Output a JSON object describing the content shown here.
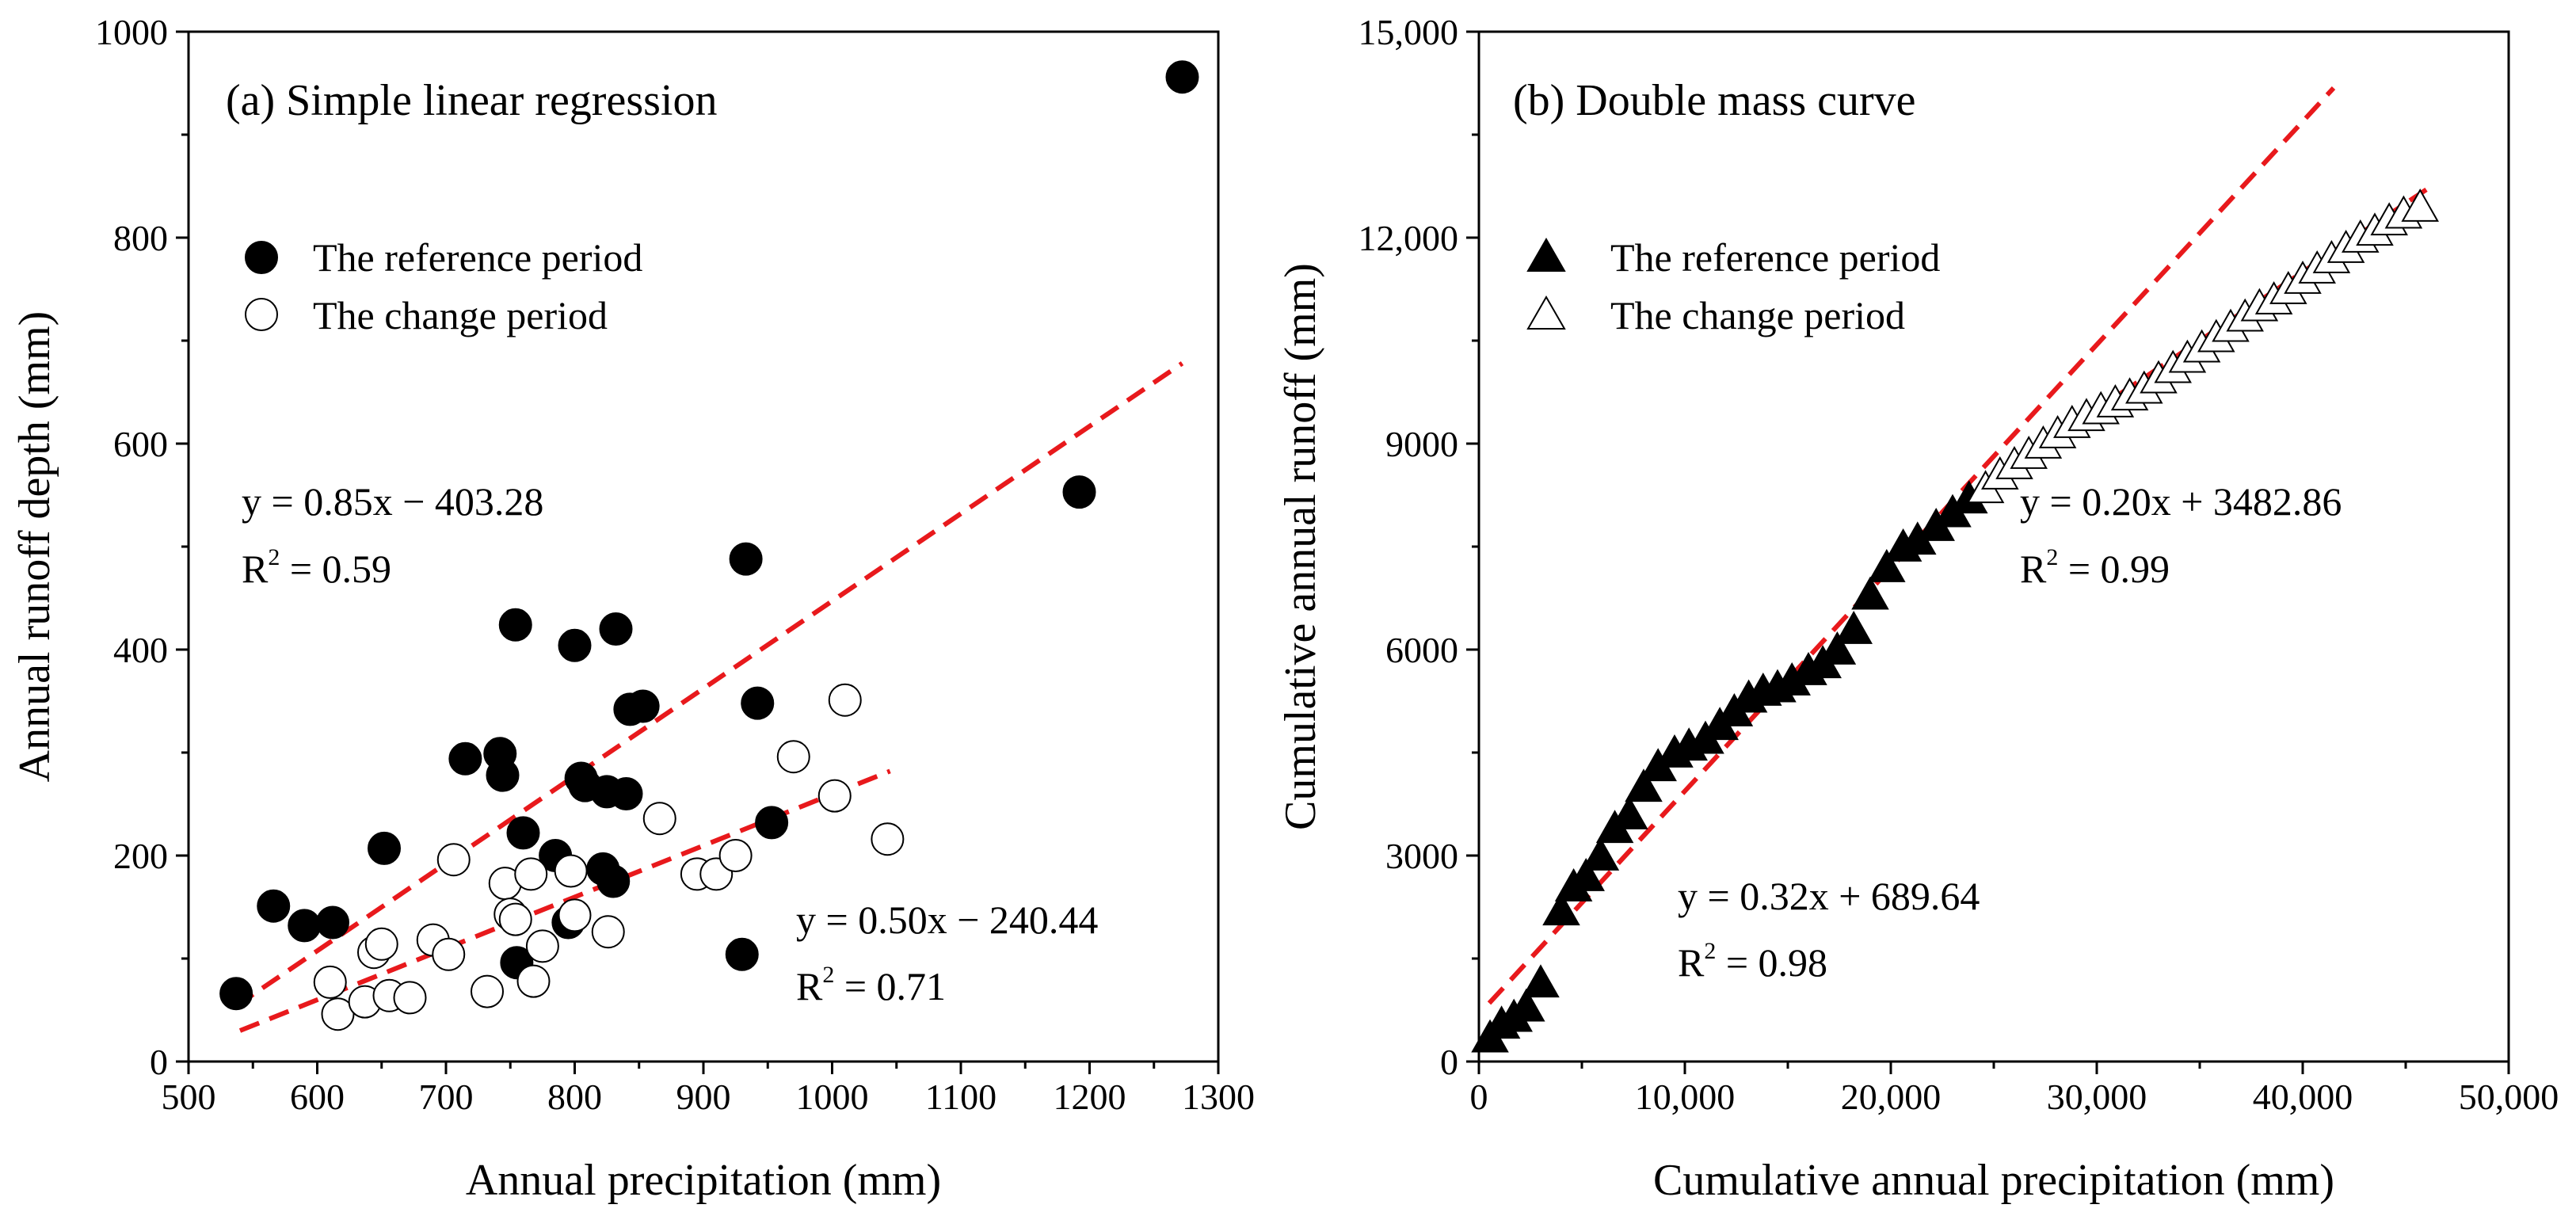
{
  "colors": {
    "fit_line": "#e8191c",
    "marker_filled": "#000000",
    "marker_open_fill": "#ffffff",
    "marker_stroke": "#000000"
  },
  "chart_data": [
    {
      "type": "scatter",
      "title": "(a) Simple linear regression",
      "xlabel": "Annual precipitation (mm)",
      "ylabel": "Annual runoff depth (mm)",
      "xlim": [
        500,
        1300
      ],
      "ylim": [
        0,
        1000
      ],
      "xticks": [
        500,
        600,
        700,
        800,
        900,
        1000,
        1100,
        1200,
        1300
      ],
      "yticks": [
        0,
        200,
        400,
        600,
        800,
        1000
      ],
      "xtick_labels": [
        "500",
        "600",
        "700",
        "800",
        "900",
        "1000",
        "1100",
        "1200",
        "1300"
      ],
      "ytick_labels": [
        "0",
        "200",
        "400",
        "600",
        "800",
        "1000"
      ],
      "legend": [
        "The reference period",
        "The change period"
      ],
      "legend_position": "top-left",
      "series": [
        {
          "name": "The reference period",
          "marker": "filled-circle",
          "x": [
            537,
            566,
            590,
            612,
            652,
            715,
            742,
            744,
            754,
            755,
            760,
            785,
            795,
            800,
            805,
            808,
            822,
            825,
            830,
            832,
            840,
            843,
            853,
            930,
            933,
            942,
            953,
            1192,
            1272
          ],
          "y": [
            66,
            151,
            132,
            135,
            207,
            294,
            299,
            278,
            424,
            96,
            222,
            200,
            135,
            404,
            275,
            268,
            187,
            262,
            175,
            420,
            260,
            342,
            345,
            104,
            488,
            348,
            232,
            553,
            956
          ]
        },
        {
          "name": "The change period",
          "marker": "open-circle",
          "x": [
            610,
            616,
            637,
            644,
            650,
            656,
            672,
            690,
            702,
            706,
            732,
            746,
            750,
            754,
            766,
            768,
            775,
            797,
            800,
            826,
            866,
            895,
            910,
            925,
            970,
            1002,
            1010,
            1043
          ],
          "y": [
            77,
            46,
            58,
            106,
            114,
            64,
            62,
            118,
            104,
            196,
            68,
            173,
            143,
            138,
            182,
            78,
            112,
            185,
            142,
            126,
            236,
            182,
            182,
            200,
            296,
            258,
            351,
            216
          ]
        }
      ],
      "fit_lines": [
        {
          "label": "reference fit",
          "x": [
            537,
            1272
          ],
          "y": [
            54,
            678
          ]
        },
        {
          "label": "change fit",
          "x": [
            540,
            1045
          ],
          "y": [
            30,
            282
          ]
        }
      ],
      "annotations": [
        {
          "eq": "y = 0.85x − 403.28",
          "r2_base": "R",
          "r2_sup": "2",
          "r2_rest": " = 0.59"
        },
        {
          "eq": "y = 0.50x − 240.44",
          "r2_base": "R",
          "r2_sup": "2",
          "r2_rest": " = 0.71"
        }
      ]
    },
    {
      "type": "scatter",
      "title": "(b) Double mass curve",
      "xlabel": "Cumulative annual precipitation (mm)",
      "ylabel": "Cumulative annual runoff (mm)",
      "xlim": [
        0,
        50000
      ],
      "ylim": [
        0,
        15000
      ],
      "xticks": [
        0,
        10000,
        20000,
        30000,
        40000,
        50000
      ],
      "yticks": [
        0,
        3000,
        6000,
        9000,
        12000,
        15000
      ],
      "xtick_labels": [
        "0",
        "10,000",
        "20,000",
        "30,000",
        "40,000",
        "50,000"
      ],
      "ytick_labels": [
        "0",
        "3000",
        "6000",
        "9000",
        "12,000",
        "15,000"
      ],
      "legend": [
        "The reference period",
        "The change period"
      ],
      "legend_position": "top-left",
      "series": [
        {
          "name": "The reference period",
          "marker": "filled-triangle",
          "x": [
            540,
            1100,
            1700,
            2300,
            3000,
            4000,
            4600,
            5200,
            5900,
            6600,
            7300,
            8000,
            8700,
            9500,
            10200,
            11000,
            11700,
            12400,
            13100,
            13800,
            14500,
            15200,
            16000,
            16700,
            17400,
            18200,
            19000,
            19800,
            20600,
            21300,
            22200,
            23000,
            23800
          ],
          "y": [
            350,
            550,
            650,
            800,
            1150,
            2200,
            2550,
            2700,
            3000,
            3400,
            3600,
            4000,
            4300,
            4500,
            4600,
            4700,
            4900,
            5100,
            5300,
            5400,
            5450,
            5550,
            5700,
            5800,
            6000,
            6300,
            6800,
            7200,
            7500,
            7600,
            7800,
            8000,
            8200
          ]
        },
        {
          "name": "The change period",
          "marker": "open-triangle",
          "x": [
            24600,
            25300,
            26000,
            26700,
            27400,
            28100,
            28800,
            29500,
            30200,
            30900,
            31600,
            32300,
            33000,
            33700,
            34400,
            35100,
            35800,
            36500,
            37200,
            37900,
            38600,
            39300,
            40000,
            40700,
            41400,
            42100,
            42800,
            43500,
            44200,
            44900,
            45700
          ],
          "y": [
            8350,
            8550,
            8700,
            8850,
            9000,
            9150,
            9300,
            9400,
            9500,
            9600,
            9700,
            9800,
            9950,
            10100,
            10250,
            10400,
            10550,
            10700,
            10850,
            11000,
            11100,
            11250,
            11400,
            11550,
            11700,
            11850,
            12000,
            12100,
            12250,
            12350,
            12450
          ]
        }
      ],
      "fit_lines": [
        {
          "label": "reference fit",
          "x": [
            500,
            41500
          ],
          "y": [
            850,
            14180
          ]
        },
        {
          "label": "change fit",
          "x": [
            26000,
            46000
          ],
          "y": [
            8700,
            12700
          ]
        }
      ],
      "annotations": [
        {
          "eq": "y = 0.20x + 3482.86",
          "r2_base": "R",
          "r2_sup": "2",
          "r2_rest": " = 0.99"
        },
        {
          "eq": "y = 0.32x + 689.64",
          "r2_base": "R",
          "r2_sup": "2",
          "r2_rest": " = 0.98"
        }
      ]
    }
  ]
}
